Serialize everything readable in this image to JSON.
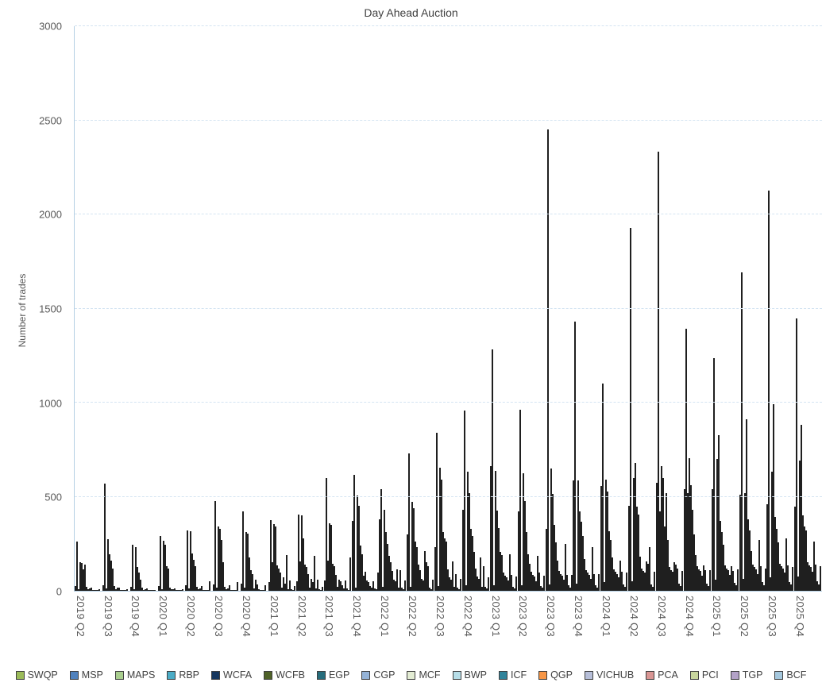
{
  "chart": {
    "title": "Day Ahead Auction",
    "ylabel": "Number of trades"
  },
  "chart_data": {
    "type": "bar",
    "title": "Day Ahead Auction",
    "xlabel": "",
    "ylabel": "Number of trades",
    "ylim": [
      0,
      3000
    ],
    "ytick_interval": 500,
    "grid": "horizontal-dashed",
    "legend_position": "bottom",
    "categories": [
      "2019 Q2",
      "2019 Q3",
      "2019 Q4",
      "2020 Q1",
      "2020 Q2",
      "2020 Q3",
      "2020 Q4",
      "2021 Q1",
      "2021 Q2",
      "2021 Q3",
      "2021 Q4",
      "2022 Q1",
      "2022 Q2",
      "2022 Q3",
      "2022 Q4",
      "2023 Q1",
      "2023 Q2",
      "2023 Q3",
      "2023 Q4",
      "2024 Q1",
      "2024 Q2",
      "2024 Q3",
      "2024 Q4",
      "2025 Q1",
      "2025 Q2",
      "2025 Q3",
      "2025 Q4"
    ],
    "series": [
      {
        "name": "SWQP",
        "color": "#9BBB59",
        "values": [
          25,
          30,
          20,
          25,
          30,
          35,
          40,
          45,
          50,
          55,
          370,
          380,
          300,
          230,
          430,
          660,
          420,
          330,
          585,
          555,
          450,
          575,
          540,
          540,
          510,
          460,
          445
        ]
      },
      {
        "name": "MSP",
        "color": "#4F81BD",
        "values": [
          262,
          570,
          245,
          290,
          320,
          475,
          420,
          375,
          405,
          600,
          615,
          540,
          730,
          840,
          955,
          1280,
          960,
          2450,
          1430,
          1100,
          1925,
          2330,
          1390,
          1235,
          1690,
          2125,
          1445
        ]
      },
      {
        "name": "MAPS",
        "color": "#A9CE8E",
        "values": [
          10,
          12,
          8,
          10,
          12,
          15,
          15,
          150,
          155,
          160,
          18,
          20,
          22,
          25,
          28,
          30,
          30,
          35,
          40,
          45,
          50,
          420,
          520,
          60,
          65,
          70,
          75
        ]
      },
      {
        "name": "RBP",
        "color": "#4BACC6",
        "values": [
          150,
          275,
          230,
          265,
          315,
          340,
          310,
          355,
          400,
          360,
          505,
          430,
          470,
          655,
          630,
          635,
          625,
          650,
          585,
          590,
          600,
          660,
          705,
          700,
          520,
          630,
          690
        ]
      },
      {
        "name": "WCFA",
        "color": "#17375E",
        "values": [
          148,
          195,
          125,
          245,
          200,
          330,
          305,
          340,
          280,
          350,
          450,
          310,
          440,
          590,
          520,
          425,
          478,
          515,
          420,
          525,
          680,
          600,
          560,
          825,
          910,
          990,
          880
        ]
      },
      {
        "name": "WCFB",
        "color": "#4F6228",
        "values": [
          115,
          160,
          95,
          130,
          165,
          270,
          175,
          135,
          140,
          145,
          240,
          250,
          260,
          310,
          330,
          335,
          310,
          350,
          365,
          315,
          445,
          340,
          430,
          370,
          380,
          390,
          400
        ]
      },
      {
        "name": "EGP",
        "color": "#276D7C",
        "values": [
          140,
          120,
          60,
          120,
          130,
          150,
          110,
          120,
          125,
          130,
          195,
          185,
          230,
          280,
          290,
          205,
          195,
          255,
          290,
          270,
          405,
          520,
          300,
          310,
          320,
          330,
          340
        ]
      },
      {
        "name": "CGP",
        "color": "#95B3D7",
        "values": [
          20,
          25,
          15,
          18,
          20,
          22,
          90,
          95,
          90,
          85,
          80,
          150,
          140,
          260,
          205,
          190,
          145,
          160,
          170,
          175,
          180,
          270,
          190,
          245,
          210,
          255,
          320
        ]
      },
      {
        "name": "MCF",
        "color": "#E3ECD3",
        "values": [
          8,
          10,
          6,
          8,
          10,
          10,
          12,
          15,
          18,
          20,
          100,
          105,
          110,
          115,
          120,
          95,
          100,
          105,
          110,
          115,
          120,
          125,
          130,
          135,
          140,
          145,
          150
        ]
      },
      {
        "name": "BWP",
        "color": "#B7DEE8",
        "values": [
          12,
          15,
          10,
          10,
          12,
          14,
          60,
          70,
          65,
          60,
          55,
          60,
          65,
          70,
          75,
          80,
          85,
          90,
          95,
          100,
          105,
          110,
          115,
          120,
          125,
          130,
          135
        ]
      },
      {
        "name": "ICF",
        "color": "#31849B",
        "values": [
          15,
          18,
          12,
          12,
          25,
          30,
          35,
          40,
          45,
          50,
          45,
          50,
          55,
          60,
          65,
          70,
          75,
          80,
          85,
          90,
          95,
          100,
          105,
          110,
          115,
          120,
          125
        ]
      },
      {
        "name": "QGP",
        "color": "#F79646",
        "values": [
          0,
          0,
          0,
          0,
          0,
          0,
          0,
          190,
          185,
          30,
          25,
          115,
          210,
          155,
          175,
          55,
          50,
          60,
          65,
          70,
          155,
          150,
          80,
          85,
          90,
          95,
          100
        ]
      },
      {
        "name": "VICHUB",
        "color": "#B7BFD9",
        "values": [
          5,
          6,
          4,
          5,
          5,
          6,
          8,
          10,
          12,
          14,
          15,
          16,
          150,
          20,
          22,
          195,
          185,
          250,
          230,
          160,
          145,
          140,
          135,
          130,
          270,
          280,
          260
        ]
      },
      {
        "name": "PCA",
        "color": "#D99694",
        "values": [
          2,
          3,
          2,
          2,
          3,
          3,
          4,
          55,
          60,
          55,
          50,
          110,
          130,
          90,
          130,
          85,
          95,
          85,
          90,
          100,
          230,
          120,
          110,
          105,
          130,
          135,
          140
        ]
      },
      {
        "name": "PCI",
        "color": "#C9D79E",
        "values": [
          4,
          5,
          3,
          4,
          4,
          5,
          6,
          8,
          10,
          12,
          14,
          15,
          18,
          18,
          20,
          22,
          25,
          28,
          30,
          32,
          35,
          38,
          40,
          42,
          45,
          48,
          50
        ]
      },
      {
        "name": "TGP",
        "color": "#B3A2C7",
        "values": [
          2,
          2,
          1,
          2,
          2,
          2,
          3,
          4,
          5,
          6,
          7,
          8,
          10,
          10,
          12,
          14,
          15,
          16,
          18,
          20,
          22,
          24,
          26,
          28,
          30,
          32,
          34
        ]
      },
      {
        "name": "BCF",
        "color": "#A5C8DE",
        "values": [
          8,
          10,
          6,
          7,
          50,
          45,
          30,
          25,
          20,
          175,
          95,
          55,
          60,
          65,
          70,
          75,
          80,
          85,
          90,
          95,
          100,
          105,
          110,
          115,
          120,
          125,
          130
        ]
      }
    ]
  }
}
